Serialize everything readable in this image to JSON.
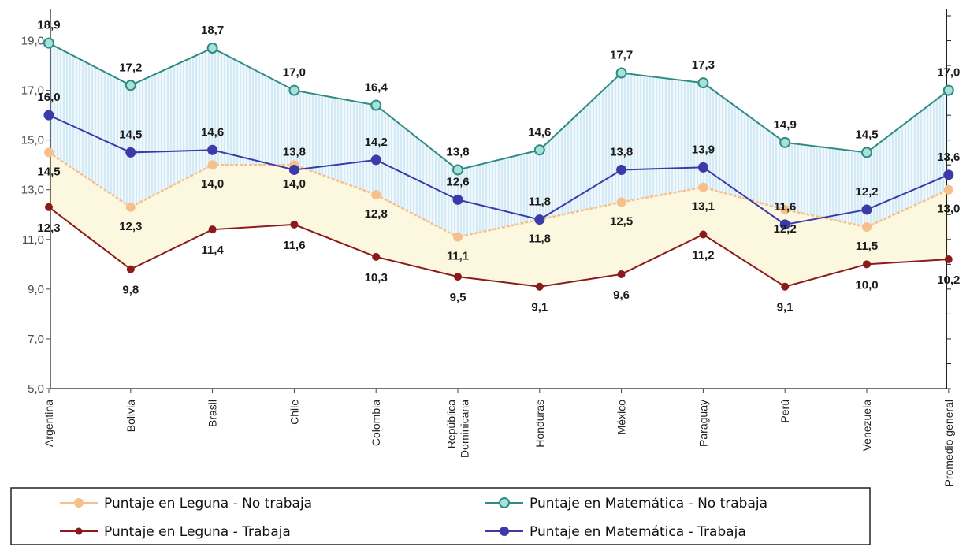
{
  "chart_data": {
    "type": "line",
    "categories": [
      "Argentina",
      "Bolivia",
      "Brasil",
      "Chile",
      "Colombia",
      "República Dominicana",
      "Honduras",
      "México",
      "Paraguay",
      "Perú",
      "Venezuela",
      "Promedio general"
    ],
    "category_lines": [
      [
        "Argentina"
      ],
      [
        "Bolivia"
      ],
      [
        "Brasil"
      ],
      [
        "Chile"
      ],
      [
        "Colombia"
      ],
      [
        "República",
        "Dominicana"
      ],
      [
        "Honduras"
      ],
      [
        "México"
      ],
      [
        "Paraguay"
      ],
      [
        "Perú"
      ],
      [
        "Venezuela"
      ],
      [
        "Promedio general"
      ]
    ],
    "ylim": [
      5,
      20
    ],
    "yticks": [
      "5,0",
      "7,0",
      "9,0",
      "11,0",
      "13,0",
      "15,0",
      "17,0",
      "19,0"
    ],
    "series": [
      {
        "name": "Puntaje en Leguna - No trabaja",
        "color": "#f7c08a",
        "values": [
          14.5,
          12.3,
          14.0,
          14.0,
          12.8,
          11.1,
          11.8,
          12.5,
          13.1,
          12.2,
          11.5,
          13.0
        ],
        "labels": [
          "14,5",
          "12,3",
          "14,0",
          "14,0",
          "12,8",
          "11,1",
          "11,8",
          "12,5",
          "13,1",
          "12,2",
          "11,5",
          "13,0"
        ]
      },
      {
        "name": "Puntaje en Matemática - No trabaja",
        "color": "#2e8b82",
        "values": [
          18.9,
          17.2,
          18.7,
          17.0,
          16.4,
          13.8,
          14.6,
          17.7,
          17.3,
          14.9,
          14.5,
          17.0
        ],
        "labels": [
          "18,9",
          "17,2",
          "18,7",
          "17,0",
          "16,4",
          "13,8",
          "14,6",
          "17,7",
          "17,3",
          "14,9",
          "14,5",
          "17,0"
        ]
      },
      {
        "name": "Puntaje en Leguna - Trabaja",
        "color": "#8b1a1a",
        "values": [
          12.3,
          9.8,
          11.4,
          11.6,
          10.3,
          9.5,
          9.1,
          9.6,
          11.2,
          9.1,
          10.0,
          10.2
        ],
        "labels": [
          "12,3",
          "9,8",
          "11,4",
          "11,6",
          "10,3",
          "9,5",
          "9,1",
          "9,6",
          "11,2",
          "9,1",
          "10,0",
          "10,2"
        ]
      },
      {
        "name": "Puntaje en Matemática - Trabaja",
        "color": "#3b3aa8",
        "values": [
          16.0,
          14.5,
          14.6,
          13.8,
          14.2,
          12.6,
          11.8,
          13.8,
          13.9,
          11.6,
          12.2,
          13.6
        ],
        "labels": [
          "16,0",
          "14,5",
          "14,6",
          "13,8",
          "14,2",
          "12,6",
          "11,8",
          "13,8",
          "13,9",
          "11,6",
          "12,2",
          "13,6"
        ]
      }
    ],
    "legend": {
      "placement": "bottom"
    }
  }
}
